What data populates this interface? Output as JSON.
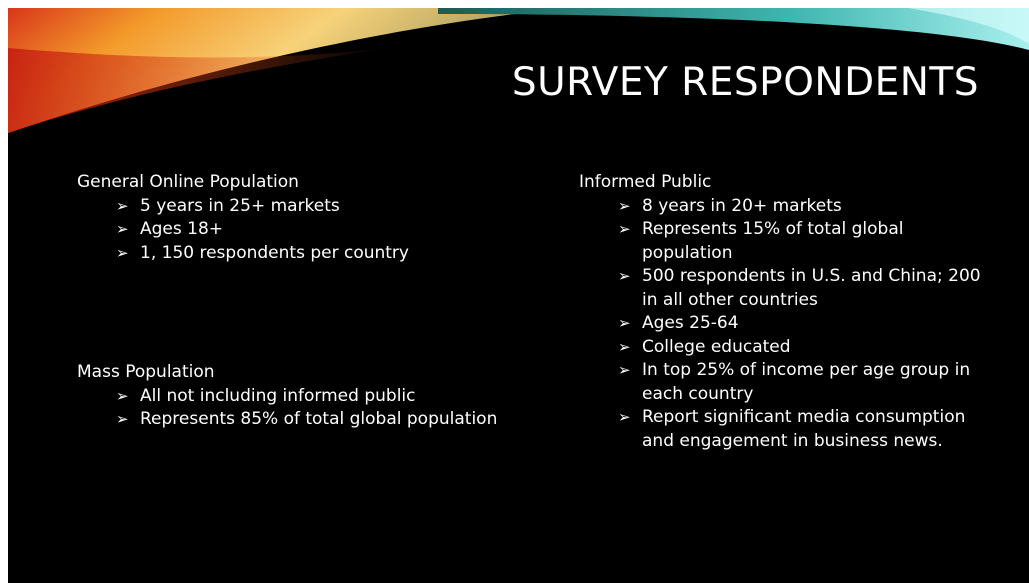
{
  "title": "SURVEY RESPONDENTS",
  "left": [
    {
      "heading": "General Online Population",
      "bullets": [
        "5 years in 25+ markets",
        "Ages 18+",
        "1, 150 respondents per country"
      ]
    },
    {
      "heading": "Mass Population",
      "bullets": [
        "All not including informed public",
        "Represents 85% of total global population"
      ]
    }
  ],
  "right": [
    {
      "heading": "Informed Public",
      "bullets": [
        "8 years in 20+ markets",
        "Represents 15% of total global population",
        "500 respondents in U.S. and China; 200 in all other countries",
        "Ages 25-64",
        "College educated",
        "In top 25% of income per age group in each country",
        "Report significant media consumption and engagement in business news."
      ]
    }
  ]
}
